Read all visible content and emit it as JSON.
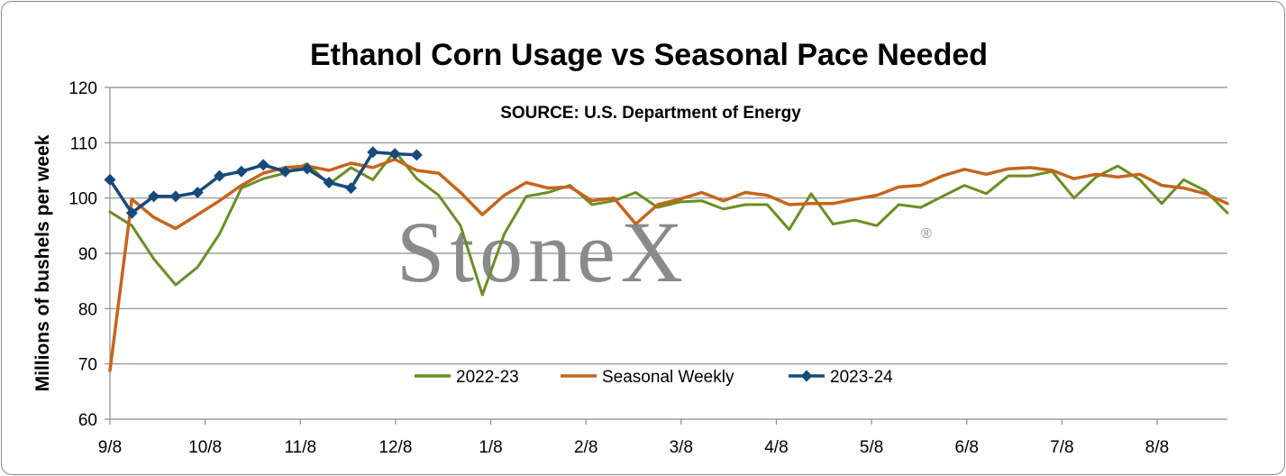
{
  "chart_data": {
    "type": "line",
    "title": "Ethanol Corn Usage vs Seasonal Pace Needed",
    "subtitle": "SOURCE: U.S. Department of Energy",
    "ylabel": "Millions of bushels per week",
    "xlabel": "",
    "ylim": [
      60,
      120
    ],
    "yticks": [
      60,
      70,
      80,
      90,
      100,
      110,
      120
    ],
    "x_tick_labels": [
      "9/8",
      "10/8",
      "11/8",
      "12/8",
      "1/8",
      "2/8",
      "3/8",
      "4/8",
      "5/8",
      "6/8",
      "7/8",
      "8/8"
    ],
    "grid": "horizontal",
    "legend_position": "bottom-center",
    "watermark": "StoneX",
    "watermark_mark": "®",
    "series": [
      {
        "name": "2022-23",
        "color": "#6b8e23",
        "marker": "none",
        "values": [
          97.5,
          95.0,
          89.0,
          84.3,
          87.5,
          93.5,
          101.8,
          103.5,
          104.5,
          106.2,
          102.5,
          105.5,
          103.3,
          108.5,
          103.5,
          100.5,
          95.0,
          82.5,
          93.5,
          100.3,
          101.0,
          102.3,
          98.8,
          99.5,
          101.0,
          98.3,
          99.3,
          99.5,
          98.0,
          98.8,
          98.8,
          94.3,
          100.8,
          95.3,
          96.0,
          95.0,
          98.8,
          98.3,
          100.3,
          102.3,
          100.8,
          104.0,
          104.0,
          104.8,
          100.0,
          103.8,
          105.8,
          103.3,
          99.0,
          103.3,
          101.3,
          97.3
        ]
      },
      {
        "name": "Seasonal Weekly",
        "color": "#c5651c",
        "marker": "none",
        "values": [
          68.8,
          99.8,
          96.5,
          94.5,
          97.0,
          99.5,
          102.3,
          104.5,
          105.5,
          105.8,
          105.0,
          106.3,
          105.5,
          107.0,
          105.0,
          104.5,
          101.0,
          97.0,
          100.5,
          102.8,
          101.8,
          102.0,
          99.5,
          100.0,
          95.3,
          98.8,
          99.8,
          101.0,
          99.5,
          101.0,
          100.5,
          98.8,
          99.0,
          99.0,
          99.8,
          100.5,
          102.0,
          102.3,
          104.0,
          105.2,
          104.3,
          105.3,
          105.5,
          105.0,
          103.5,
          104.3,
          103.8,
          104.3,
          102.3,
          101.8,
          100.8,
          99.0
        ]
      },
      {
        "name": "2023-24",
        "color": "#17497b",
        "marker": "diamond",
        "values": [
          103.3,
          97.3,
          100.3,
          100.3,
          101.0,
          104.0,
          104.8,
          106.0,
          104.8,
          105.3,
          102.8,
          101.8,
          108.3,
          108.0,
          107.8
        ]
      }
    ]
  }
}
